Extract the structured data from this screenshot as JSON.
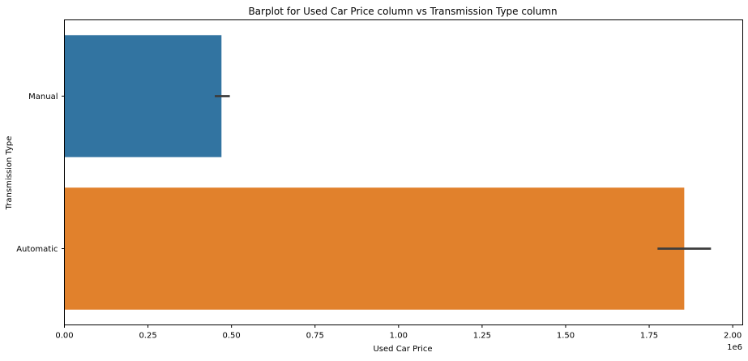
{
  "chart_data": {
    "type": "bar",
    "orientation": "horizontal",
    "title": "Barplot for Used Car Price column vs Transmission Type column",
    "xlabel": "Used Car Price",
    "ylabel": "Transmission Type",
    "x_offset_label": "1e6",
    "xlim": [
      0,
      2030000
    ],
    "xticks": [
      0,
      250000,
      500000,
      750000,
      1000000,
      1250000,
      1500000,
      1750000,
      2000000
    ],
    "xtick_labels": [
      "0.00",
      "0.25",
      "0.50",
      "0.75",
      "1.00",
      "1.25",
      "1.50",
      "1.75",
      "2.00"
    ],
    "categories": [
      "Manual",
      "Automatic"
    ],
    "values": [
      470000,
      1855000
    ],
    "error_bars": [
      [
        450000,
        495000
      ],
      [
        1775000,
        1935000
      ]
    ],
    "colors": [
      "#3274a1",
      "#e1812c"
    ],
    "error_color": "#3d3d3d",
    "grid": false,
    "legend": false
  }
}
